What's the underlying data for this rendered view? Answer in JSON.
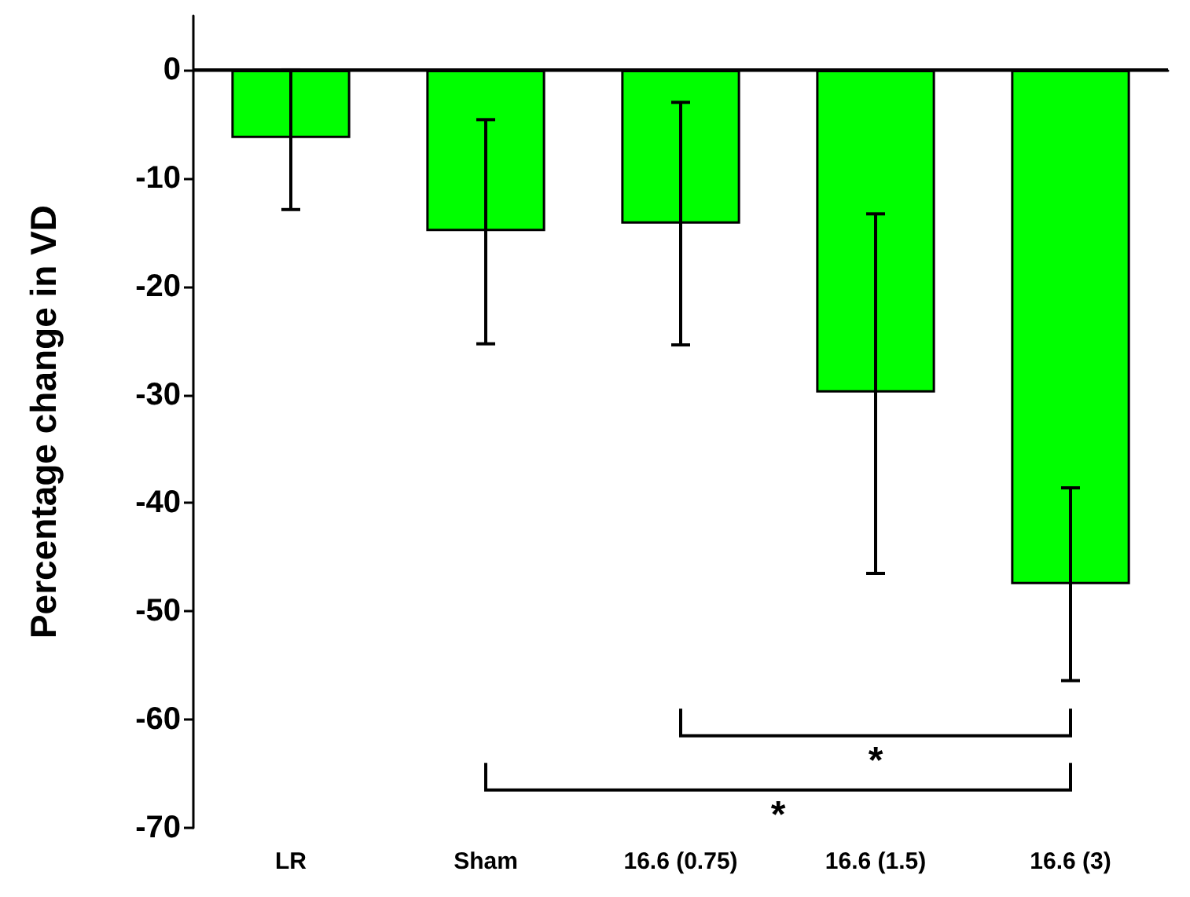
{
  "chart_data": {
    "type": "bar",
    "ylabel": "Percentage change in VD",
    "categories": [
      "LR",
      "Sham",
      "16.6 (0.75)",
      "16.6 (1.5)",
      "16.6 (3)"
    ],
    "values": [
      -6.3,
      -14.9,
      -14.2,
      -29.8,
      -47.5
    ],
    "errors": [
      [
        -12.9,
        0
      ],
      [
        -25.3,
        -4.6
      ],
      [
        -25.4,
        -3.0
      ],
      [
        -46.5,
        -13.3
      ],
      [
        -56.4,
        -38.6
      ]
    ],
    "color": "#00ff00",
    "ylim": [
      -70,
      5
    ],
    "yticks": [
      -70,
      -60,
      -50,
      -40,
      -30,
      -20,
      -10,
      0
    ],
    "ref_lines": [
      {
        "axis": "y",
        "value": 0,
        "color": "#000000"
      }
    ],
    "annotations": [
      "*",
      "*"
    ]
  }
}
